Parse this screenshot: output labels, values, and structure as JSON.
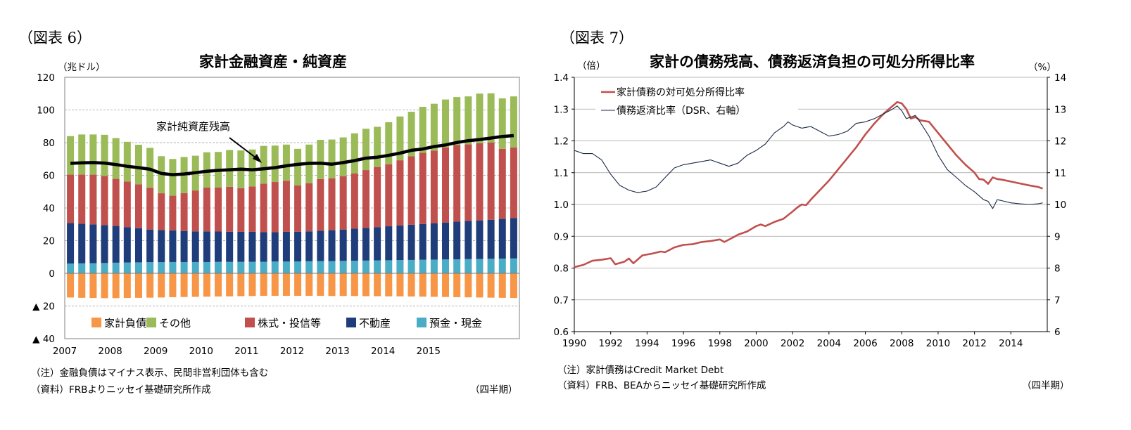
{
  "charts": [
    {
      "figure_label": "（図表 6）",
      "title": "家計金融資産・純資産",
      "unit_left": "（兆ドル）",
      "annotation": "家計純資産残高",
      "notes": [
        "（注）金融負債はマイナス表示、民間非営利団体も含む",
        "（資料）FRBよりニッセイ基礎研究所作成"
      ],
      "period_note": "（四半期）"
    },
    {
      "figure_label": "（図表 7）",
      "title": "家計の債務残高、債務返済負担の可処分所得比率",
      "unit_left": "（倍）",
      "unit_right": "（%）",
      "notes": [
        "（注）家計債務はCredit Market Debt",
        "（資料）FRB、BEAからニッセイ基礎研究所作成"
      ],
      "period_note": "（四半期）"
    }
  ],
  "chart_data": [
    {
      "type": "bar",
      "stacked": true,
      "title": "家計金融資産・純資産",
      "ylabel": "（兆ドル）",
      "ylim": [
        -40,
        120
      ],
      "yticks": [
        120,
        100,
        80,
        60,
        40,
        20,
        0,
        -20,
        -40
      ],
      "ytick_labels": [
        "120",
        "100",
        "80",
        "60",
        "40",
        "20",
        "0",
        "▲ 20",
        "▲ 40"
      ],
      "x_year_labels": [
        "2007",
        "2008",
        "2009",
        "2010",
        "2011",
        "2012",
        "2013",
        "2014",
        "2015"
      ],
      "first_year": 2007,
      "quarters_per_year": 4,
      "grid": true,
      "legend_position": "bottom",
      "colors": {
        "liabilities": "#f79646",
        "other": "#9bbb59",
        "equities": "#c0504d",
        "real_estate": "#1f3d7a",
        "deposits": "#4bacc6",
        "net_worth": "#000000"
      },
      "series": [
        {
          "key": "deposits",
          "name": "預金・現金",
          "values": [
            6.0,
            6.1,
            6.2,
            6.3,
            6.5,
            6.6,
            6.7,
            6.8,
            6.8,
            6.9,
            6.9,
            6.9,
            6.9,
            7.0,
            7.0,
            7.0,
            7.1,
            7.1,
            7.2,
            7.2,
            7.3,
            7.4,
            7.5,
            7.5,
            7.6,
            7.7,
            7.8,
            7.9,
            8.0,
            8.1,
            8.2,
            8.3,
            8.4,
            8.5,
            8.6,
            8.7,
            8.8,
            8.9,
            9.0,
            9.1
          ]
        },
        {
          "key": "real_estate",
          "name": "不動産",
          "values": [
            24.8,
            24.2,
            23.8,
            23.2,
            22.5,
            21.7,
            20.9,
            20.0,
            19.7,
            19.3,
            19.0,
            18.8,
            18.8,
            18.6,
            18.5,
            18.4,
            18.3,
            18.1,
            18.0,
            18.2,
            18.2,
            18.3,
            18.5,
            18.9,
            19.2,
            19.6,
            20.0,
            20.4,
            20.8,
            21.2,
            21.6,
            21.9,
            22.3,
            22.6,
            23.0,
            23.4,
            23.6,
            23.9,
            24.3,
            24.8
          ]
        },
        {
          "key": "equities",
          "name": "株式・投信等",
          "values": [
            29.7,
            30.2,
            30.4,
            30.1,
            28.8,
            27.9,
            26.9,
            25.6,
            22.5,
            21.3,
            23.2,
            25.0,
            26.8,
            27.0,
            27.5,
            26.7,
            27.8,
            29.7,
            30.7,
            31.3,
            28.3,
            29.5,
            31.7,
            31.8,
            32.7,
            33.9,
            35.4,
            36.8,
            38.0,
            39.9,
            41.8,
            43.6,
            44.4,
            46.0,
            46.9,
            46.8,
            47.2,
            47.3,
            42.9,
            43.2
          ]
        },
        {
          "key": "other",
          "name": "その他",
          "values": [
            23.5,
            24.5,
            24.6,
            25.2,
            25.0,
            24.3,
            24.2,
            24.4,
            22.7,
            22.5,
            22.1,
            21.3,
            21.6,
            21.7,
            22.5,
            23.1,
            22.6,
            23.1,
            22.3,
            22.1,
            22.4,
            23.6,
            24.0,
            23.7,
            23.7,
            24.5,
            25.3,
            24.6,
            25.7,
            26.8,
            27.3,
            28.1,
            28.7,
            29.3,
            29.4,
            29.4,
            30.4,
            30.1,
            30.9,
            31.2
          ]
        },
        {
          "key": "liabilities",
          "name": "家計負債",
          "values": [
            -14.8,
            -15.0,
            -15.1,
            -15.2,
            -15.2,
            -15.1,
            -15.0,
            -14.9,
            -14.8,
            -14.6,
            -14.5,
            -14.4,
            -14.3,
            -14.2,
            -14.1,
            -14.0,
            -13.9,
            -13.8,
            -13.8,
            -13.8,
            -13.8,
            -13.8,
            -13.8,
            -13.9,
            -13.9,
            -13.9,
            -14.0,
            -14.0,
            -14.1,
            -14.1,
            -14.2,
            -14.3,
            -14.4,
            -14.5,
            -14.6,
            -14.7,
            -14.8,
            -14.9,
            -15.0,
            -15.1
          ]
        }
      ],
      "line": {
        "key": "net_worth",
        "name": "家計純資産残高",
        "values": [
          67.3,
          67.6,
          67.8,
          67.5,
          66.6,
          65.5,
          64.7,
          63.7,
          61.1,
          60.4,
          60.8,
          61.6,
          62.5,
          63.0,
          63.4,
          63.8,
          63.4,
          64.0,
          64.7,
          65.8,
          66.7,
          67.3,
          67.4,
          66.8,
          67.8,
          69.0,
          70.5,
          71.1,
          72.2,
          73.6,
          75.3,
          76.1,
          77.6,
          78.6,
          80.1,
          81.2,
          81.9,
          82.8,
          83.8,
          84.3
        ]
      },
      "legend_order": [
        "liabilities",
        "other",
        "equities",
        "real_estate",
        "deposits"
      ]
    },
    {
      "type": "line",
      "title": "家計の債務残高、債務返済負担の可処分所得比率",
      "ylabel": "（倍）",
      "y2label": "（%）",
      "ylim": [
        0.6,
        1.4
      ],
      "y2lim": [
        6,
        14
      ],
      "yticks": [
        "0.6",
        "0.7",
        "0.8",
        "0.9",
        "1.0",
        "1.1",
        "1.2",
        "1.3",
        "1.4"
      ],
      "y2ticks": [
        "6",
        "7",
        "8",
        "9",
        "10",
        "11",
        "12",
        "13",
        "14"
      ],
      "xlim": [
        1990,
        2016
      ],
      "xticks": [
        "1990",
        "1992",
        "1994",
        "1996",
        "1998",
        "2000",
        "2002",
        "2004",
        "2006",
        "2008",
        "2010",
        "2012",
        "2014"
      ],
      "grid": true,
      "legend_position": "top-left",
      "series": [
        {
          "key": "debt_ratio",
          "name": "家計債務の対可処分所得比率",
          "axis": "left",
          "color": "#c0504d",
          "points": [
            [
              1990.0,
              0.803
            ],
            [
              1990.5,
              0.81
            ],
            [
              1991.0,
              0.823
            ],
            [
              1991.5,
              0.826
            ],
            [
              1992.0,
              0.831
            ],
            [
              1992.25,
              0.812
            ],
            [
              1992.75,
              0.82
            ],
            [
              1993.0,
              0.83
            ],
            [
              1993.25,
              0.815
            ],
            [
              1993.75,
              0.84
            ],
            [
              1994.25,
              0.845
            ],
            [
              1994.75,
              0.852
            ],
            [
              1995.0,
              0.85
            ],
            [
              1995.5,
              0.865
            ],
            [
              1996.0,
              0.873
            ],
            [
              1996.5,
              0.875
            ],
            [
              1997.0,
              0.882
            ],
            [
              1997.5,
              0.885
            ],
            [
              1998.0,
              0.89
            ],
            [
              1998.25,
              0.882
            ],
            [
              1998.75,
              0.897
            ],
            [
              1999.0,
              0.905
            ],
            [
              1999.5,
              0.915
            ],
            [
              2000.0,
              0.932
            ],
            [
              2000.25,
              0.937
            ],
            [
              2000.5,
              0.932
            ],
            [
              2001.0,
              0.945
            ],
            [
              2001.5,
              0.955
            ],
            [
              2002.0,
              0.978
            ],
            [
              2002.25,
              0.99
            ],
            [
              2002.5,
              1.0
            ],
            [
              2002.75,
              0.998
            ],
            [
              2003.0,
              1.015
            ],
            [
              2003.5,
              1.045
            ],
            [
              2004.0,
              1.075
            ],
            [
              2004.5,
              1.11
            ],
            [
              2005.0,
              1.145
            ],
            [
              2005.5,
              1.18
            ],
            [
              2006.0,
              1.22
            ],
            [
              2006.5,
              1.255
            ],
            [
              2007.0,
              1.285
            ],
            [
              2007.5,
              1.31
            ],
            [
              2007.75,
              1.322
            ],
            [
              2008.0,
              1.318
            ],
            [
              2008.25,
              1.3
            ],
            [
              2008.5,
              1.27
            ],
            [
              2008.75,
              1.275
            ],
            [
              2009.0,
              1.265
            ],
            [
              2009.5,
              1.26
            ],
            [
              2010.0,
              1.225
            ],
            [
              2010.5,
              1.19
            ],
            [
              2011.0,
              1.155
            ],
            [
              2011.5,
              1.125
            ],
            [
              2012.0,
              1.1
            ],
            [
              2012.25,
              1.08
            ],
            [
              2012.5,
              1.078
            ],
            [
              2012.75,
              1.065
            ],
            [
              2013.0,
              1.085
            ],
            [
              2013.25,
              1.08
            ],
            [
              2013.5,
              1.078
            ],
            [
              2014.0,
              1.072
            ],
            [
              2014.5,
              1.066
            ],
            [
              2015.0,
              1.06
            ],
            [
              2015.5,
              1.055
            ],
            [
              2015.75,
              1.05
            ]
          ]
        },
        {
          "key": "dsr",
          "name": "債務返済比率（DSR、右軸）",
          "axis": "right",
          "color": "#1a2a44",
          "points": [
            [
              1990.0,
              11.7
            ],
            [
              1990.25,
              11.65
            ],
            [
              1990.5,
              11.6
            ],
            [
              1991.0,
              11.6
            ],
            [
              1991.5,
              11.4
            ],
            [
              1992.0,
              10.95
            ],
            [
              1992.5,
              10.6
            ],
            [
              1993.0,
              10.45
            ],
            [
              1993.5,
              10.37
            ],
            [
              1993.75,
              10.4
            ],
            [
              1994.0,
              10.42
            ],
            [
              1994.5,
              10.55
            ],
            [
              1995.0,
              10.85
            ],
            [
              1995.5,
              11.15
            ],
            [
              1996.0,
              11.25
            ],
            [
              1996.5,
              11.3
            ],
            [
              1997.0,
              11.35
            ],
            [
              1997.5,
              11.4
            ],
            [
              1998.0,
              11.3
            ],
            [
              1998.5,
              11.2
            ],
            [
              1999.0,
              11.3
            ],
            [
              1999.5,
              11.55
            ],
            [
              2000.0,
              11.7
            ],
            [
              2000.5,
              11.9
            ],
            [
              2001.0,
              12.25
            ],
            [
              2001.5,
              12.45
            ],
            [
              2001.75,
              12.6
            ],
            [
              2002.0,
              12.5
            ],
            [
              2002.5,
              12.4
            ],
            [
              2003.0,
              12.45
            ],
            [
              2003.5,
              12.3
            ],
            [
              2004.0,
              12.15
            ],
            [
              2004.5,
              12.2
            ],
            [
              2005.0,
              12.3
            ],
            [
              2005.5,
              12.55
            ],
            [
              2006.0,
              12.6
            ],
            [
              2006.5,
              12.7
            ],
            [
              2007.0,
              12.85
            ],
            [
              2007.5,
              13.0
            ],
            [
              2007.75,
              13.1
            ],
            [
              2008.0,
              12.95
            ],
            [
              2008.25,
              12.7
            ],
            [
              2008.5,
              12.75
            ],
            [
              2008.75,
              12.8
            ],
            [
              2009.0,
              12.6
            ],
            [
              2009.5,
              12.15
            ],
            [
              2010.0,
              11.55
            ],
            [
              2010.5,
              11.1
            ],
            [
              2011.0,
              10.85
            ],
            [
              2011.5,
              10.6
            ],
            [
              2012.0,
              10.4
            ],
            [
              2012.5,
              10.15
            ],
            [
              2012.75,
              10.1
            ],
            [
              2013.0,
              9.87
            ],
            [
              2013.25,
              10.15
            ],
            [
              2013.5,
              10.12
            ],
            [
              2014.0,
              10.05
            ],
            [
              2014.5,
              10.02
            ],
            [
              2015.0,
              10.0
            ],
            [
              2015.5,
              10.02
            ],
            [
              2015.75,
              10.05
            ]
          ]
        }
      ]
    }
  ]
}
